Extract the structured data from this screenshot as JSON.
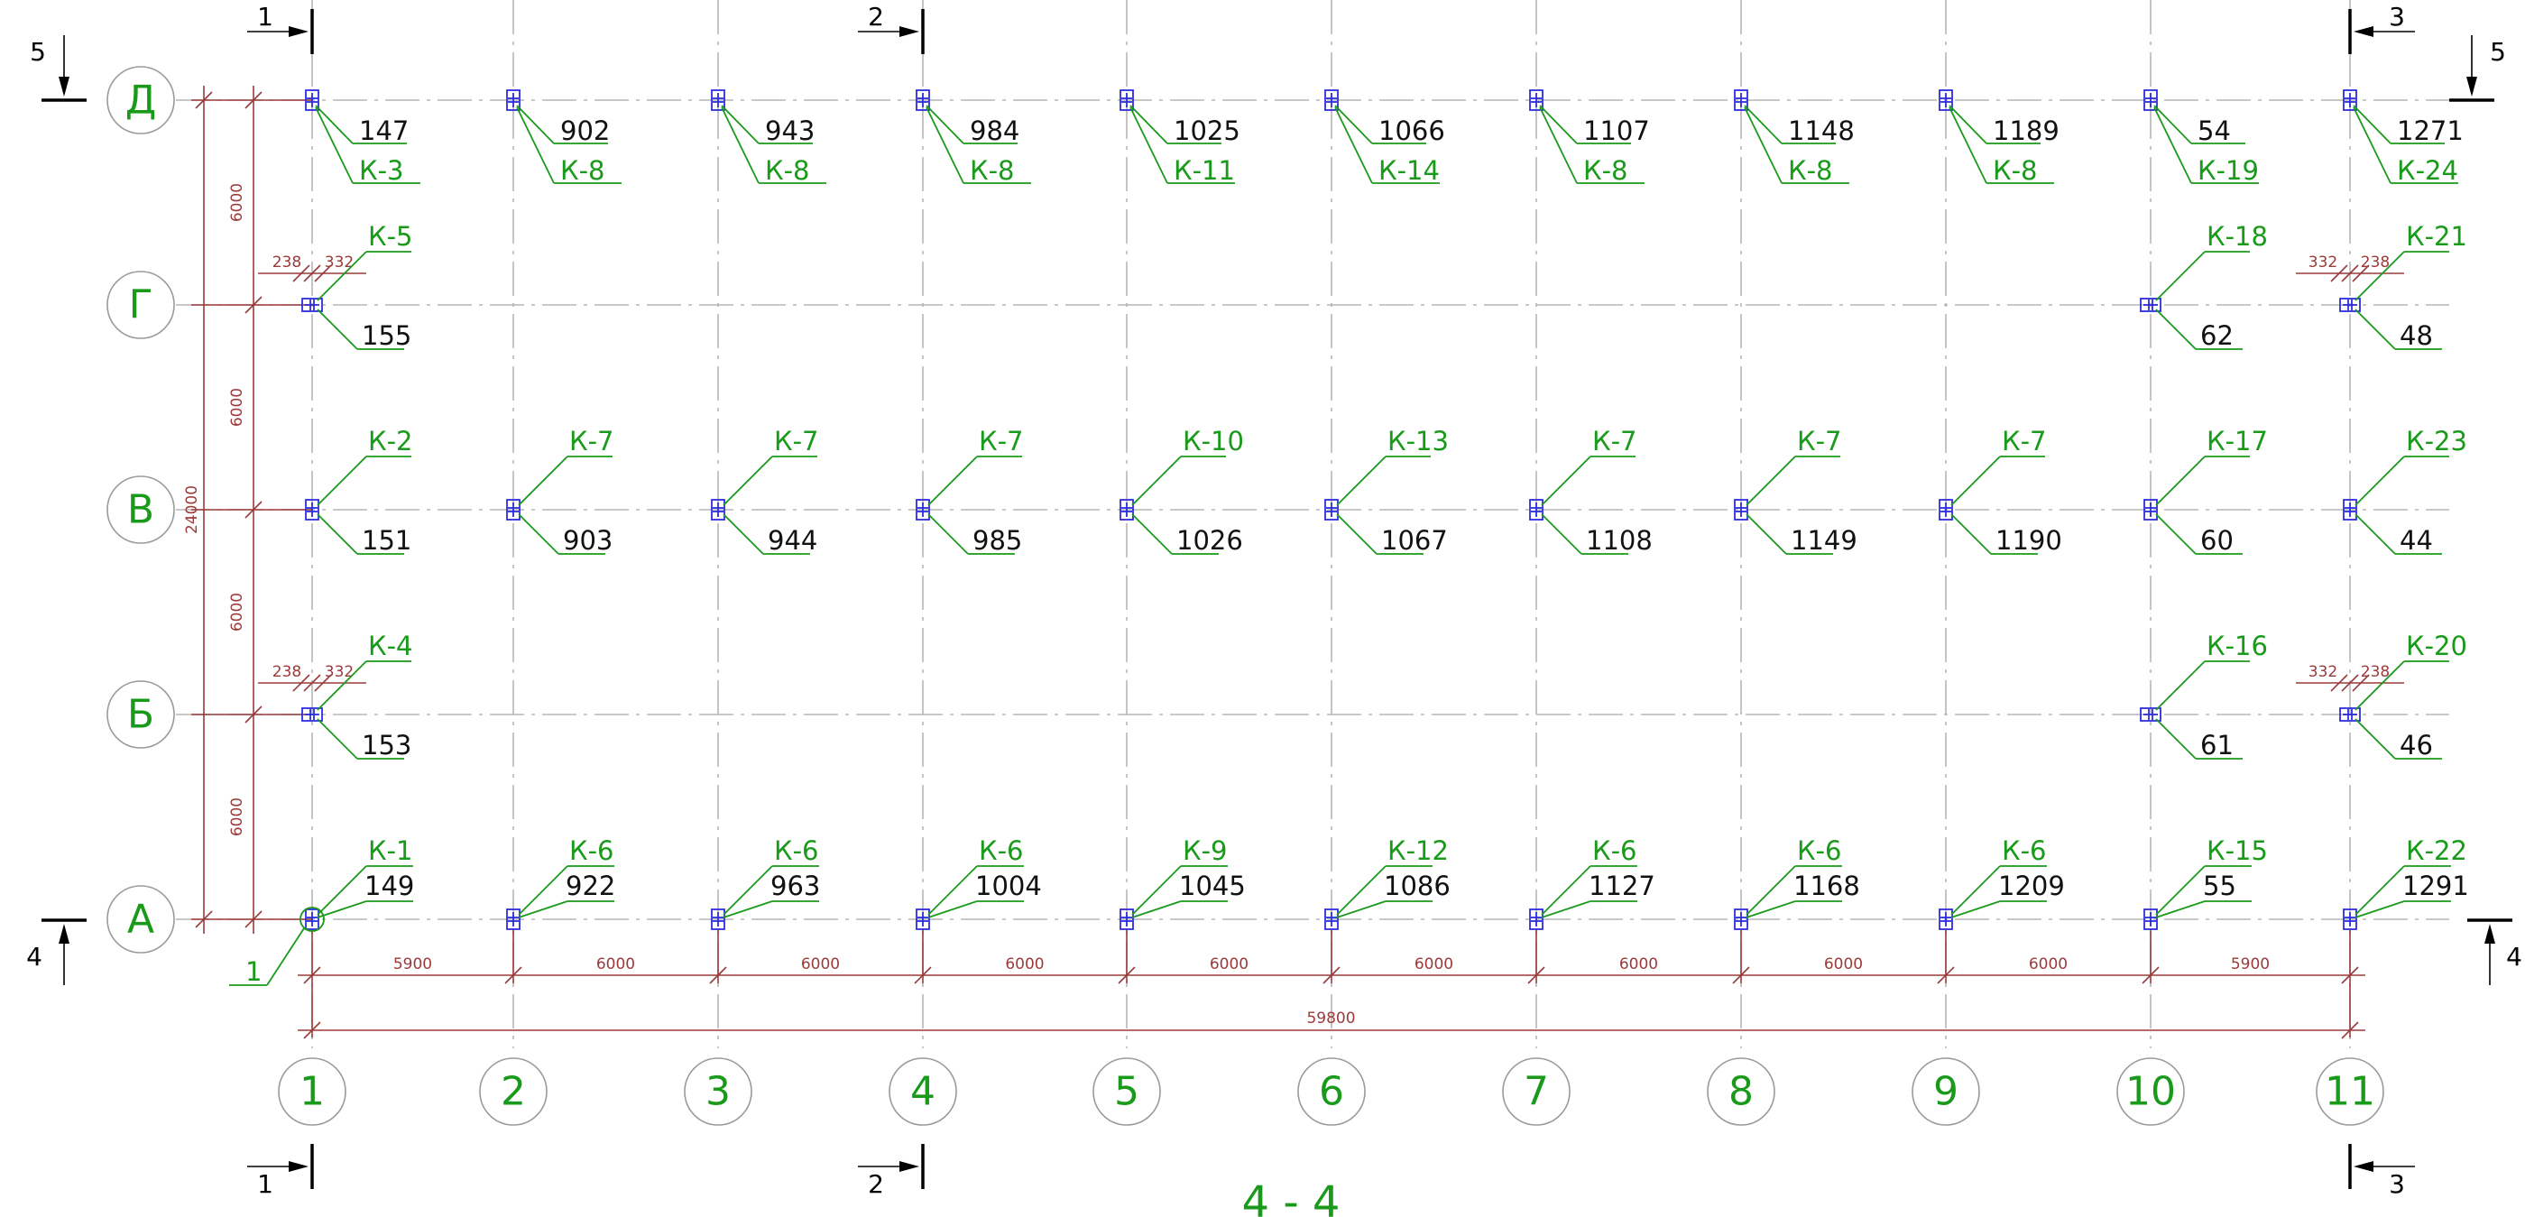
{
  "grid_axes": {
    "columns": [
      "1",
      "2",
      "3",
      "4",
      "5",
      "6",
      "7",
      "8",
      "9",
      "10",
      "11"
    ],
    "rows": [
      "Д",
      "Г",
      "В",
      "Б",
      "А"
    ]
  },
  "dimensions": {
    "bay_spacing": [
      "5900",
      "6000",
      "6000",
      "6000",
      "6000",
      "6000",
      "6000",
      "6000",
      "6000",
      "5900"
    ],
    "overall_length": "59800",
    "row_spacing": [
      "6000",
      "6000",
      "6000",
      "6000"
    ],
    "overall_width": "24000",
    "edge_offsets": {
      "a": "238",
      "b": "332"
    }
  },
  "columns_marks": {
    "Д": [
      {
        "num": "147",
        "code": "К-3"
      },
      {
        "num": "902",
        "code": "К-8"
      },
      {
        "num": "943",
        "code": "К-8"
      },
      {
        "num": "984",
        "code": "К-8"
      },
      {
        "num": "1025",
        "code": "К-11"
      },
      {
        "num": "1066",
        "code": "К-14"
      },
      {
        "num": "1107",
        "code": "К-8"
      },
      {
        "num": "1148",
        "code": "К-8"
      },
      {
        "num": "1189",
        "code": "К-8"
      },
      {
        "num": "54",
        "code": "К-19"
      },
      {
        "num": "1271",
        "code": "К-24"
      }
    ],
    "Г": [
      {
        "col": "1",
        "num": "155",
        "code": "К-5"
      },
      {
        "col": "10",
        "num": "62",
        "code": "К-18"
      },
      {
        "col": "11",
        "num": "48",
        "code": "К-21"
      }
    ],
    "В": [
      {
        "num": "151",
        "code": "К-2"
      },
      {
        "num": "903",
        "code": "К-7"
      },
      {
        "num": "944",
        "code": "К-7"
      },
      {
        "num": "985",
        "code": "К-7"
      },
      {
        "num": "1026",
        "code": "К-10"
      },
      {
        "num": "1067",
        "code": "К-13"
      },
      {
        "num": "1108",
        "code": "К-7"
      },
      {
        "num": "1149",
        "code": "К-7"
      },
      {
        "num": "1190",
        "code": "К-7"
      },
      {
        "num": "60",
        "code": "К-17"
      },
      {
        "num": "44",
        "code": "К-23"
      }
    ],
    "Б": [
      {
        "col": "1",
        "num": "153",
        "code": "К-4"
      },
      {
        "col": "10",
        "num": "61",
        "code": "К-16"
      },
      {
        "col": "11",
        "num": "46",
        "code": "К-20"
      }
    ],
    "А": [
      {
        "num": "149",
        "code": "К-1"
      },
      {
        "num": "922",
        "code": "К-6"
      },
      {
        "num": "963",
        "code": "К-6"
      },
      {
        "num": "1004",
        "code": "К-6"
      },
      {
        "num": "1045",
        "code": "К-9"
      },
      {
        "num": "1086",
        "code": "К-12"
      },
      {
        "num": "1127",
        "code": "К-6"
      },
      {
        "num": "1168",
        "code": "К-6"
      },
      {
        "num": "1209",
        "code": "К-6"
      },
      {
        "num": "55",
        "code": "К-15"
      },
      {
        "num": "1291",
        "code": "К-22"
      }
    ]
  },
  "section_marks": {
    "s1": "1",
    "s2": "2",
    "s3": "3",
    "s4": "4",
    "s5": "5",
    "node_callout": "1"
  },
  "drawing_title": "4 - 4",
  "colors": {
    "axis_label": "#1a9a1a",
    "dimension": "#9b3a3a",
    "column_symbol": "#2d2dde",
    "leader": "#1a9a1a"
  }
}
